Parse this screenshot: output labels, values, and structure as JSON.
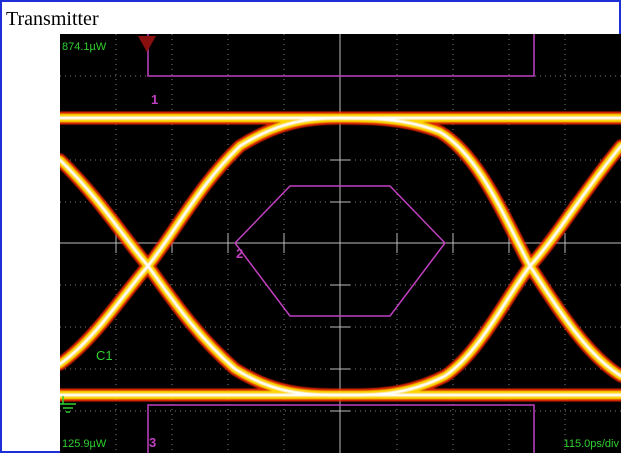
{
  "title": "Transmitter",
  "scope": {
    "top_power_label": "874.1µW",
    "bottom_power_label": "125.9µW",
    "timebase_label": "115.0ps/div",
    "channel_label": "C1",
    "mask_labels": [
      "1",
      "2",
      "3"
    ]
  },
  "colors": {
    "frame_border": "#1f2fd6",
    "screen_bg": "#000000",
    "grid": "#9a9a9a",
    "mask": "#c040c0",
    "label_green": "#2fd02f",
    "trigger_marker": "#8a1010",
    "eye_hot": "#ffffff",
    "eye_mid": "#ffe000",
    "eye_outer": "#ff2a00"
  },
  "icons": {
    "trigger_marker": "trigger-arrow-icon",
    "ground_marker": "ground-icon"
  }
}
